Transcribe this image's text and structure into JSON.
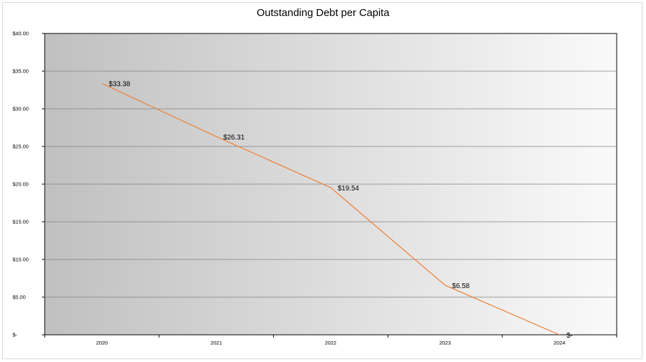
{
  "chart_data": {
    "type": "line",
    "title": "Outstanding Debt per Capita",
    "xlabel": "",
    "ylabel": "",
    "categories": [
      "2020",
      "2021",
      "2022",
      "2023",
      "2024"
    ],
    "series": [
      {
        "values": [
          33.38,
          26.31,
          19.54,
          6.58,
          0
        ],
        "data_labels": [
          "$33.38",
          "$26.31",
          "$19.54",
          "$6.58",
          "$-"
        ]
      }
    ],
    "y_tick_labels": [
      "$-",
      "$5.00",
      "$10.00",
      "$15.00",
      "$20.00",
      "$25.00",
      "$30.00",
      "$35.00",
      "$40.00"
    ],
    "ylim": [
      0,
      40
    ],
    "y_step": 5,
    "grid": true,
    "legend": "none",
    "colors": {
      "line": "#ed7d31",
      "plot_bg_left": "#c0c0c0",
      "plot_bg_right": "#fafafa",
      "gridline": "#808080",
      "axis": "#000000"
    }
  }
}
